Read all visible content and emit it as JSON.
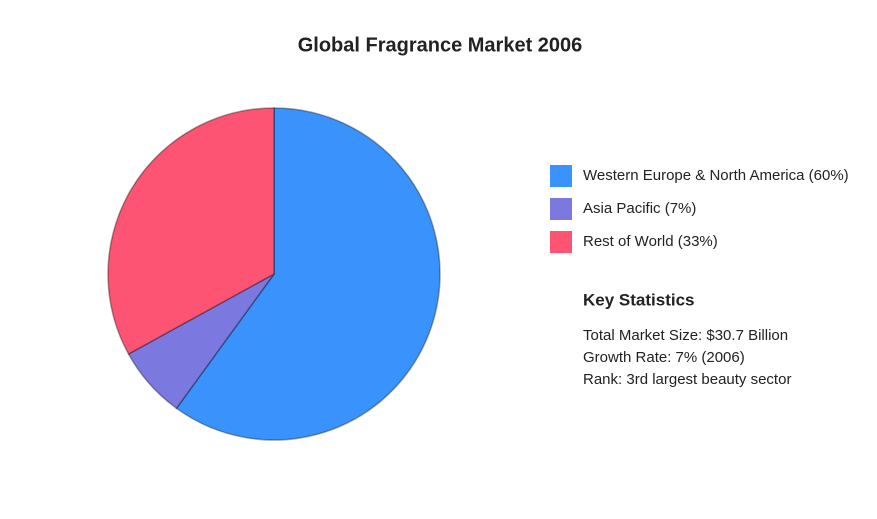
{
  "chart_data": {
    "type": "pie",
    "title": "Global Fragrance Market 2006",
    "categories": [
      "Western Europe & North America (60%)",
      "Asia Pacific (7%)",
      "Rest of World (33%)"
    ],
    "values": [
      60,
      7,
      33
    ],
    "colors": [
      "#3a93fd",
      "#7b79e0",
      "#fd5473"
    ],
    "legend": "right"
  },
  "key_statistics": {
    "title": "Key Statistics",
    "items": [
      "Total Market Size: $30.7 Billion",
      "Growth Rate: 7% (2006)",
      "Rank: 3rd largest beauty sector"
    ]
  }
}
